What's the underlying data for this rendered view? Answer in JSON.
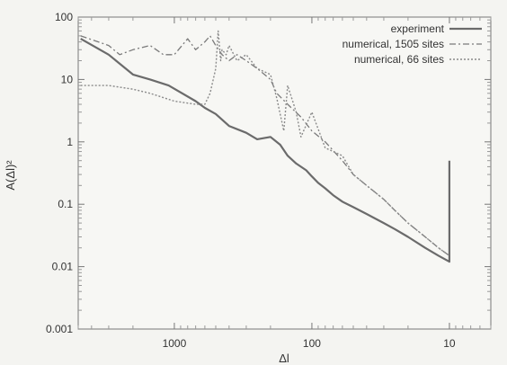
{
  "chart_data": {
    "type": "line",
    "title": "",
    "xlabel": "Δl",
    "ylabel": "A(Δl)²",
    "xscale": "log",
    "xreversed": true,
    "yscale": "log",
    "xlim": [
      5000,
      5
    ],
    "ylim": [
      0.001,
      100
    ],
    "xticks": [
      1000,
      100,
      10
    ],
    "xtick_labels": [
      "1000",
      "100",
      "10"
    ],
    "yticks": [
      100,
      10,
      1,
      0.1,
      0.01,
      0.001
    ],
    "ytick_labels": [
      "100",
      "10",
      "1",
      "0.1",
      "0.01",
      "0.001"
    ],
    "grid": false,
    "legend_position": "top-right",
    "series": [
      {
        "name": "experiment",
        "style": "solid",
        "color": "#6b6b6b",
        "x": [
          4800,
          3000,
          2000,
          1500,
          1100,
          700,
          600,
          500,
          400,
          300,
          250,
          200,
          170,
          150,
          130,
          110,
          100,
          90,
          80,
          70,
          60,
          50,
          40,
          30,
          25,
          20,
          15,
          12,
          10,
          10
        ],
        "y": [
          45,
          25,
          12,
          10,
          8,
          4.5,
          3.5,
          2.8,
          1.8,
          1.4,
          1.1,
          1.2,
          0.9,
          0.6,
          0.45,
          0.35,
          0.28,
          0.22,
          0.18,
          0.14,
          0.11,
          0.09,
          0.07,
          0.05,
          0.04,
          0.03,
          0.02,
          0.015,
          0.012,
          0.5
        ]
      },
      {
        "name": "numerical, 1505 sites",
        "style": "dashdot",
        "color": "#7a7a7a",
        "x": [
          4800,
          3000,
          2500,
          2000,
          1500,
          1200,
          1000,
          800,
          700,
          600,
          550,
          500,
          450,
          400,
          350,
          300,
          250,
          200,
          180,
          150,
          120,
          100,
          80,
          60,
          50,
          40,
          30,
          25,
          20,
          15,
          12,
          10
        ],
        "y": [
          50,
          35,
          25,
          30,
          35,
          25,
          25,
          45,
          30,
          40,
          50,
          35,
          25,
          20,
          25,
          20,
          15,
          10,
          6,
          4,
          2.5,
          1.5,
          1,
          0.5,
          0.3,
          0.2,
          0.12,
          0.08,
          0.05,
          0.03,
          0.02,
          0.015
        ]
      },
      {
        "name": "numerical, 66 sites",
        "style": "dotted",
        "color": "#8a8a8a",
        "x": [
          4800,
          3000,
          2000,
          1500,
          1000,
          700,
          600,
          550,
          500,
          480,
          460,
          450,
          420,
          400,
          350,
          300,
          250,
          200,
          180,
          160,
          150,
          130,
          120,
          100,
          80,
          60,
          50,
          40,
          30,
          25,
          20,
          15,
          12,
          10
        ],
        "y": [
          8,
          8,
          7,
          6,
          4.5,
          4,
          4,
          6,
          15,
          60,
          20,
          30,
          25,
          35,
          20,
          25,
          15,
          12,
          5,
          1.5,
          8,
          3,
          1.2,
          3,
          0.8,
          0.6,
          0.3,
          0.2,
          0.12,
          0.08,
          0.05,
          0.03,
          0.02,
          0.015
        ]
      }
    ]
  }
}
